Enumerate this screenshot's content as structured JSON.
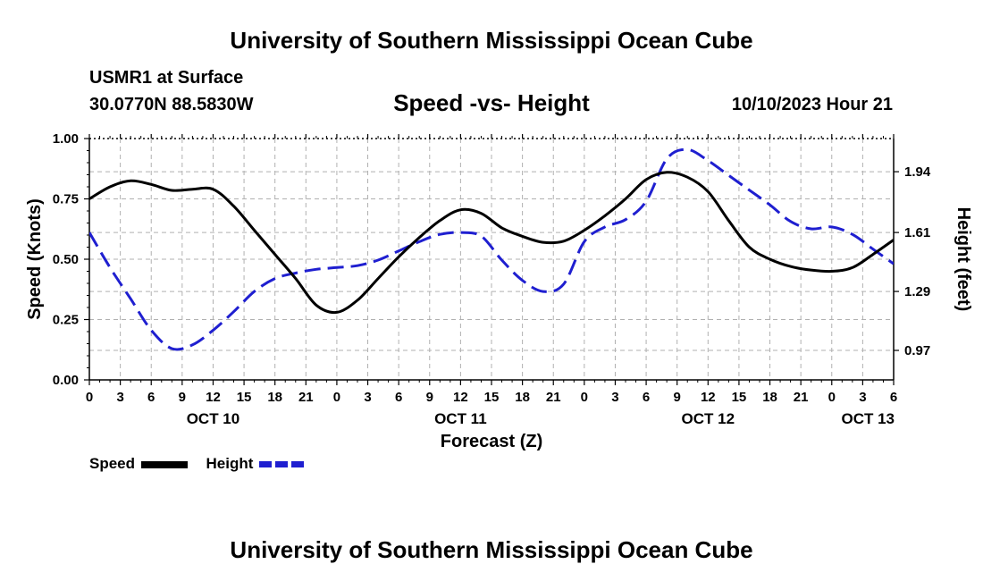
{
  "header": {
    "title": "University of Southern Mississippi Ocean Cube",
    "station": "USMR1 at Surface",
    "coords": "30.0770N  88.5830W",
    "subtitle": "Speed -vs- Height",
    "datetime": "10/10/2023 Hour 21"
  },
  "footer": {
    "title": "University of Southern Mississippi Ocean Cube"
  },
  "legend": {
    "speed_label": "Speed",
    "height_label": "Height"
  },
  "chart_data": {
    "type": "line",
    "title": "Speed -vs- Height",
    "xlabel": "Forecast (Z)",
    "ylabel": "Speed (Knots)",
    "y2label": "Height (feet)",
    "x_unit": "forecast hours from OCT 10 00Z",
    "xlim": [
      0,
      78
    ],
    "ylim": [
      0,
      1.0
    ],
    "y2lim": [
      0.81,
      2.12
    ],
    "grid": true,
    "x_tick_labels": [
      "0",
      "3",
      "6",
      "9",
      "12",
      "15",
      "18",
      "21",
      "0",
      "3",
      "6",
      "9",
      "12",
      "15",
      "18",
      "21",
      "0",
      "3",
      "6",
      "9",
      "12",
      "15",
      "18",
      "21",
      "0",
      "3",
      "6"
    ],
    "y_ticks": [
      0,
      0.25,
      0.5,
      0.75,
      1.0
    ],
    "y_tick_labels": [
      "0.00",
      "0.25",
      "0.50",
      "0.75",
      "1.00"
    ],
    "y2_ticks": [
      0.97,
      1.29,
      1.61,
      1.94
    ],
    "y2_tick_labels": [
      "0.97",
      "1.29",
      "1.61",
      "1.94"
    ],
    "day_labels": [
      {
        "hour": 12,
        "label": "OCT 10"
      },
      {
        "hour": 36,
        "label": "OCT 11"
      },
      {
        "hour": 60,
        "label": "OCT 12"
      },
      {
        "hour": 78,
        "label": "OCT 13"
      }
    ],
    "series": [
      {
        "name": "Speed",
        "axis": "left",
        "color": "#000000",
        "style": "solid",
        "x": [
          0,
          2,
          4,
          6,
          8,
          10,
          12,
          14,
          16,
          18,
          20,
          22,
          24,
          26,
          28,
          30,
          32,
          34,
          36,
          38,
          40,
          42,
          44,
          46,
          48,
          50,
          52,
          54,
          56,
          58,
          60,
          62,
          64,
          66,
          68,
          70,
          72,
          74,
          76,
          78
        ],
        "y": [
          0.75,
          0.8,
          0.825,
          0.81,
          0.785,
          0.79,
          0.79,
          0.72,
          0.62,
          0.52,
          0.42,
          0.31,
          0.28,
          0.33,
          0.42,
          0.51,
          0.59,
          0.66,
          0.705,
          0.69,
          0.63,
          0.595,
          0.57,
          0.575,
          0.62,
          0.68,
          0.75,
          0.83,
          0.86,
          0.84,
          0.78,
          0.66,
          0.55,
          0.5,
          0.47,
          0.455,
          0.45,
          0.465,
          0.52,
          0.58
        ]
      },
      {
        "name": "Height",
        "axis": "right",
        "color": "#1f1fd0",
        "style": "dashed",
        "x": [
          0,
          2,
          4,
          6,
          8,
          10,
          12,
          14,
          16,
          18,
          20,
          22,
          24,
          26,
          28,
          30,
          32,
          34,
          36,
          38,
          40,
          42,
          44,
          46,
          48,
          50,
          52,
          54,
          56,
          58,
          60,
          62,
          64,
          66,
          68,
          70,
          72,
          74,
          76,
          78
        ],
        "y": [
          1.61,
          1.42,
          1.25,
          1.08,
          0.98,
          1.0,
          1.08,
          1.18,
          1.29,
          1.36,
          1.39,
          1.41,
          1.42,
          1.43,
          1.46,
          1.51,
          1.56,
          1.6,
          1.61,
          1.59,
          1.46,
          1.35,
          1.29,
          1.33,
          1.56,
          1.64,
          1.68,
          1.78,
          2.01,
          2.06,
          2.0,
          1.92,
          1.84,
          1.76,
          1.67,
          1.63,
          1.64,
          1.6,
          1.52,
          1.44
        ]
      }
    ]
  }
}
